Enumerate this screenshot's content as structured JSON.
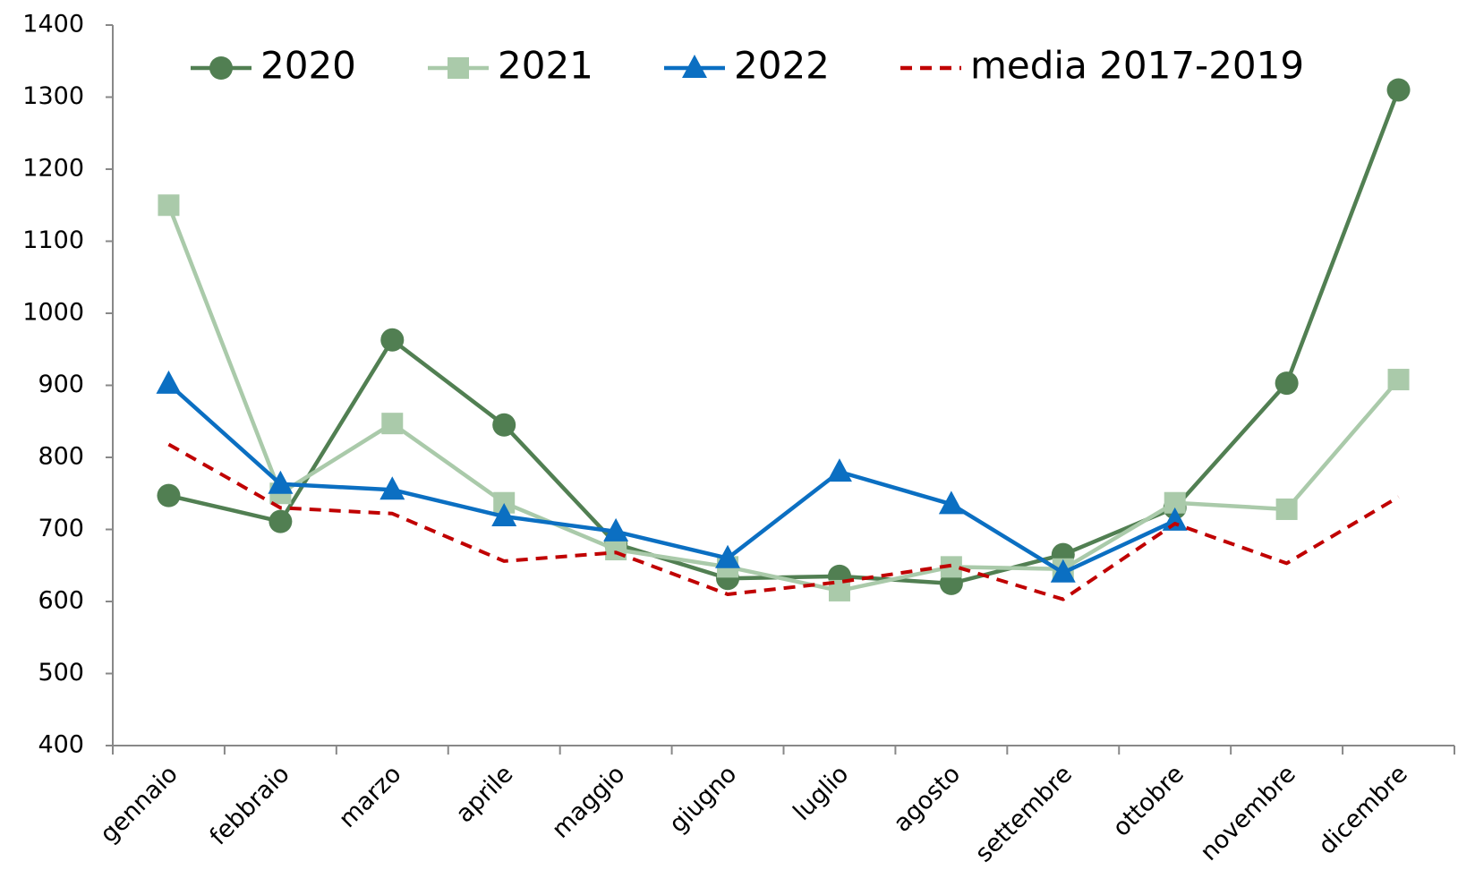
{
  "chart_data": {
    "type": "line",
    "categories": [
      "gennaio",
      "febbraio",
      "marzo",
      "aprile",
      "maggio",
      "giugno",
      "luglio",
      "agosto",
      "settembre",
      "ottobre",
      "novembre",
      "dicembre"
    ],
    "series": [
      {
        "name": "2020",
        "color": "#517f52",
        "marker": "circle",
        "dashed": false,
        "values": [
          747,
          711,
          963,
          845,
          680,
          632,
          635,
          625,
          665,
          730,
          903,
          1310
        ]
      },
      {
        "name": "2021",
        "color": "#aacaaa",
        "marker": "square",
        "dashed": false,
        "values": [
          1150,
          750,
          847,
          737,
          672,
          648,
          615,
          648,
          645,
          737,
          728,
          908
        ]
      },
      {
        "name": "2022",
        "color": "#0b6fc2",
        "marker": "triangle",
        "dashed": false,
        "values": [
          902,
          763,
          755,
          718,
          697,
          660,
          780,
          735,
          640,
          712,
          null,
          null
        ]
      },
      {
        "name": "media 2017-2019",
        "color": "#c00000",
        "marker": "none",
        "dashed": true,
        "values": [
          818,
          730,
          722,
          656,
          668,
          610,
          627,
          650,
          603,
          708,
          653,
          745
        ]
      }
    ],
    "ylim": [
      400,
      1400
    ],
    "yticks": [
      400,
      500,
      600,
      700,
      800,
      900,
      1000,
      1100,
      1200,
      1300,
      1400
    ],
    "grid": false,
    "legend": "top"
  }
}
